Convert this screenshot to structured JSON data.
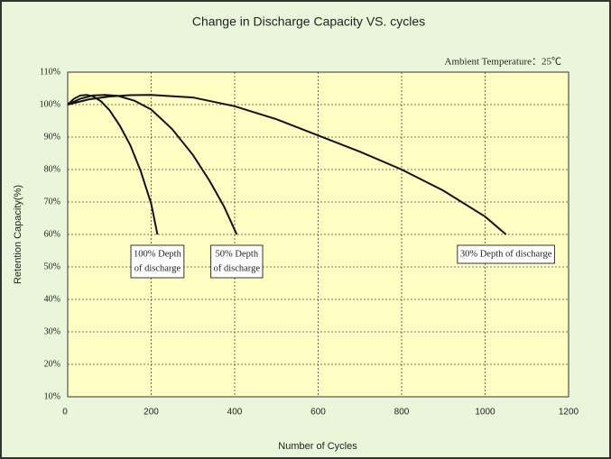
{
  "chart_data": {
    "type": "line",
    "title": "Change in Discharge Capacity VS. cycles",
    "xlabel": "Number of Cycles",
    "ylabel": "Retention Capacity(%)",
    "annotation": "Ambient Temperature：25℃",
    "xlim": [
      0,
      1200
    ],
    "xticks": [
      0,
      200,
      400,
      600,
      800,
      1000,
      1200
    ],
    "ylim": [
      10,
      110
    ],
    "yticks": [
      {
        "value": 10,
        "label": "10%"
      },
      {
        "value": 20,
        "label": "20%"
      },
      {
        "value": 30,
        "label": "30%"
      },
      {
        "value": 40,
        "label": "40%"
      },
      {
        "value": 50,
        "label": "50%"
      },
      {
        "value": 60,
        "label": "60%"
      },
      {
        "value": 70,
        "label": "70%"
      },
      {
        "value": 80,
        "label": "80%"
      },
      {
        "value": 90,
        "label": "90%"
      },
      {
        "value": 100,
        "label": "100%"
      },
      {
        "value": 110,
        "label": "110%"
      }
    ],
    "grid": true,
    "series": [
      {
        "name_lines": [
          "100% Depth",
          "of discharge"
        ],
        "color": "#111111",
        "x": [
          0,
          15,
          30,
          45,
          60,
          80,
          100,
          125,
          150,
          175,
          200,
          215
        ],
        "values": [
          100,
          101.8,
          102.8,
          103,
          102.6,
          101,
          98.3,
          93.5,
          87.5,
          79.5,
          69.5,
          60
        ]
      },
      {
        "name_lines": [
          "50% Depth",
          "of discharge"
        ],
        "color": "#111111",
        "x": [
          0,
          30,
          60,
          90,
          120,
          160,
          200,
          250,
          300,
          340,
          375,
          405
        ],
        "values": [
          100,
          101.8,
          102.8,
          103,
          102.7,
          101.2,
          98.5,
          92.5,
          84.5,
          76.5,
          68.5,
          60
        ]
      },
      {
        "name_lines": [
          "30% Depth of discharge"
        ],
        "color": "#111111",
        "x": [
          0,
          50,
          100,
          150,
          200,
          300,
          400,
          500,
          600,
          700,
          800,
          900,
          1000,
          1050
        ],
        "values": [
          100,
          101.6,
          102.5,
          102.9,
          103,
          102.2,
          99.5,
          95.5,
          90.5,
          85.5,
          80,
          73.5,
          65.5,
          60
        ]
      }
    ]
  }
}
